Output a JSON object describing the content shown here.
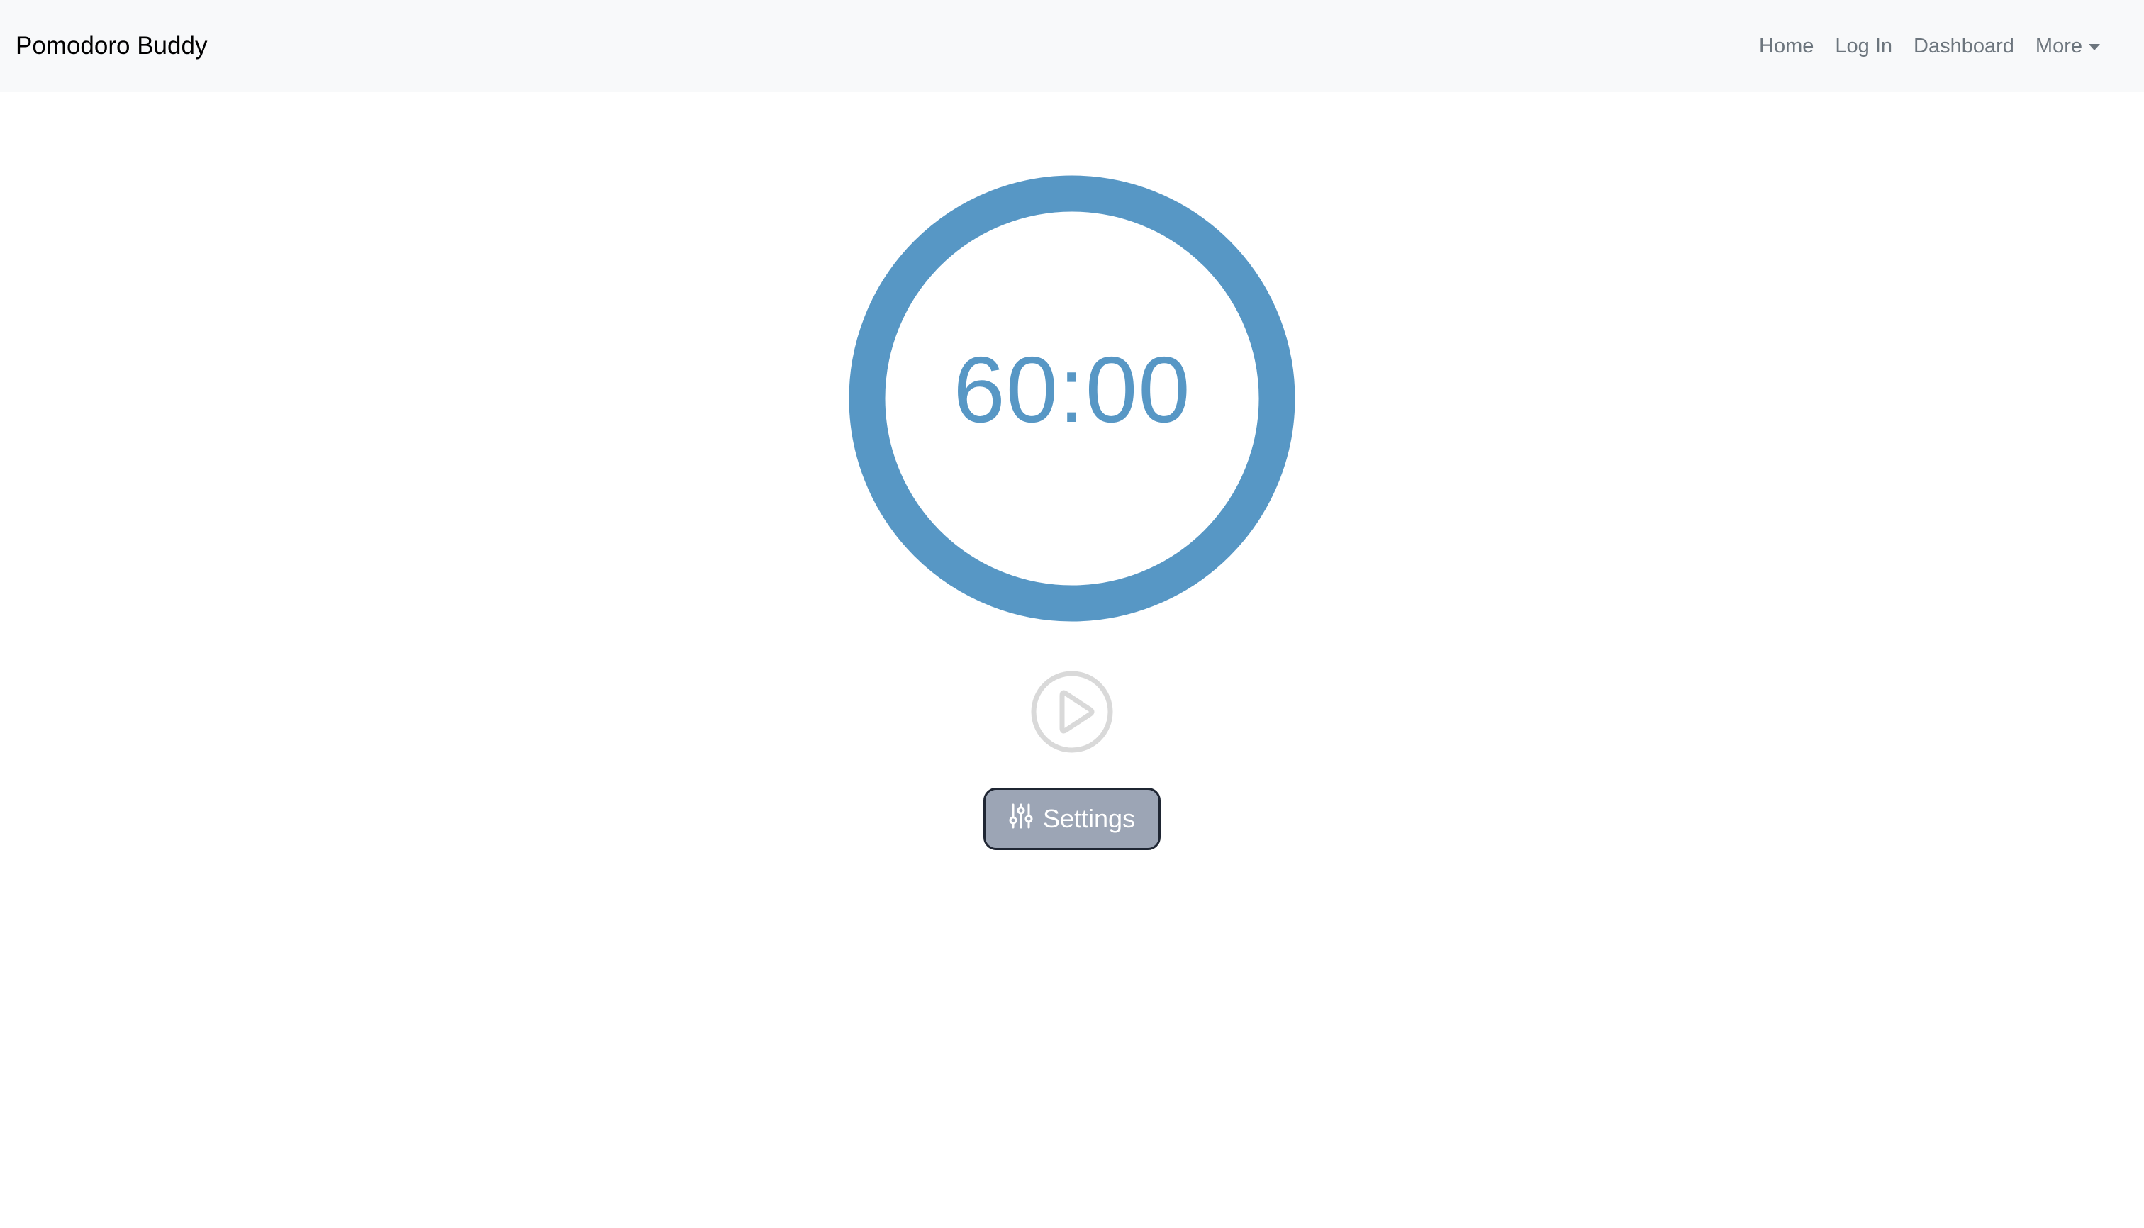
{
  "navbar": {
    "brand": "Pomodoro Buddy",
    "links": [
      {
        "label": "Home"
      },
      {
        "label": "Log In"
      },
      {
        "label": "Dashboard"
      },
      {
        "label": "More"
      }
    ]
  },
  "timer": {
    "display": "60:00",
    "progress": 1.0,
    "ring_color": "#5797c5"
  },
  "controls": {
    "play_icon": "play-circle-icon",
    "settings_icon": "sliders-icon",
    "settings_label": "Settings"
  },
  "colors": {
    "navbar_bg": "#f8f9fa",
    "nav_link": "#6c757d",
    "accent": "#5797c5",
    "play_icon": "#d9d9d9",
    "settings_button_bg": "#9ca5b5"
  }
}
